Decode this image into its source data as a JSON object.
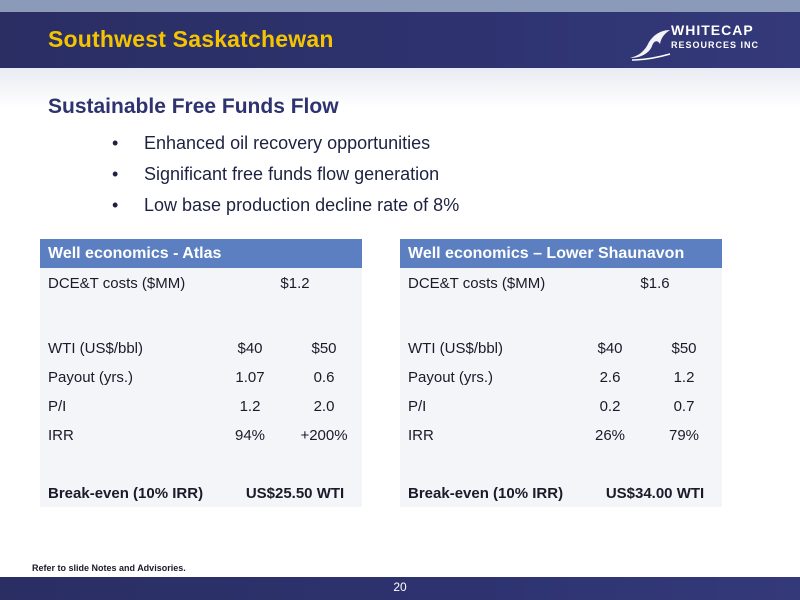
{
  "header": {
    "title": "Southwest Saskatchewan"
  },
  "logo": {
    "line1": "WHITECAP",
    "line2": "RESOURCES INC"
  },
  "section": {
    "title": "Sustainable Free Funds Flow",
    "bullets": [
      "Enhanced oil recovery opportunities",
      "Significant free funds flow generation",
      "Low base production decline rate of 8%"
    ]
  },
  "bullet_glyph": "•",
  "tables": [
    {
      "title": "Well economics - Atlas",
      "costs_label": "DCE&T costs ($MM)",
      "costs_value": "$1.2",
      "wti_label": "WTI (US$/bbl)",
      "wti_1": "$40",
      "wti_2": "$50",
      "rows": [
        {
          "label": "Payout (yrs.)",
          "v1": "1.07",
          "v2": "0.6"
        },
        {
          "label": "P/I",
          "v1": "1.2",
          "v2": "2.0"
        },
        {
          "label": "IRR",
          "v1": "94%",
          "v2": "+200%"
        }
      ],
      "breakeven_label": "Break-even (10% IRR)",
      "breakeven_value": "US$25.50 WTI"
    },
    {
      "title": "Well economics – Lower Shaunavon",
      "costs_label": "DCE&T costs ($MM)",
      "costs_value": "$1.6",
      "wti_label": "WTI (US$/bbl)",
      "wti_1": "$40",
      "wti_2": "$50",
      "rows": [
        {
          "label": "Payout (yrs.)",
          "v1": "2.6",
          "v2": "1.2"
        },
        {
          "label": "P/I",
          "v1": "0.2",
          "v2": "0.7"
        },
        {
          "label": "IRR",
          "v1": "26%",
          "v2": "79%"
        }
      ],
      "breakeven_label": "Break-even (10% IRR)",
      "breakeven_value": "US$34.00 WTI"
    }
  ],
  "footnote": "Refer to slide Notes and Advisories.",
  "page_number": "20",
  "colors": {
    "header_bg": "#2e3370",
    "title_yellow": "#f5c400",
    "table_head": "#5b7fc0",
    "section_title": "#2e3370"
  }
}
